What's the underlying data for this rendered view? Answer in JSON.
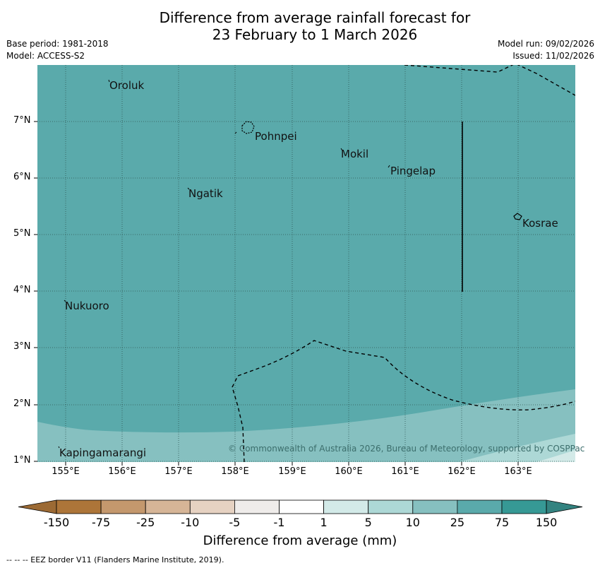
{
  "title": {
    "line1": "Difference from average rainfall forecast for",
    "line2": "23 February to 1 March 2026"
  },
  "meta": {
    "base_period": "Base period: 1981-2018",
    "model": "Model: ACCESS-S2",
    "model_run": "Model run: 09/02/2026",
    "issued": "Issued: 11/02/2026"
  },
  "map": {
    "lat_labels": [
      "7°N",
      "6°N",
      "5°N",
      "4°N",
      "3°N",
      "2°N",
      "1°N"
    ],
    "lon_labels": [
      "155°E",
      "156°E",
      "157°E",
      "158°E",
      "159°E",
      "160°E",
      "161°E",
      "162°E",
      "163°E"
    ],
    "places": [
      "Oroluk",
      "Pohnpei",
      "Mokil",
      "Pingelap",
      "Ngatik",
      "Kosrae",
      "Nukuoro",
      "Kapingamarangi"
    ],
    "copyright": "© Commonwealth of Australia 2026, Bureau of Meteorology, supported by COSPPac",
    "colors": {
      "main_fill": "#5aaaab",
      "lower_band": "#86c0c0",
      "lowest_band": "#add8d6",
      "corner": "#d3eae8"
    }
  },
  "colorbar": {
    "labels": [
      "-150",
      "-75",
      "-25",
      "-10",
      "-5",
      "-1",
      "1",
      "5",
      "10",
      "25",
      "75",
      "150"
    ],
    "colors": [
      "#ad7539",
      "#c4986d",
      "#d6b597",
      "#e6d2c2",
      "#efecea",
      "#ffffff",
      "#d3eae8",
      "#add8d6",
      "#86c0c0",
      "#5aaaab",
      "#369995",
      "#338380",
      "#9c6a34"
    ],
    "title": "Difference from average (mm)"
  },
  "footer": "--  --  -- EEZ border V11 (Flanders Marine Institute, 2019)."
}
